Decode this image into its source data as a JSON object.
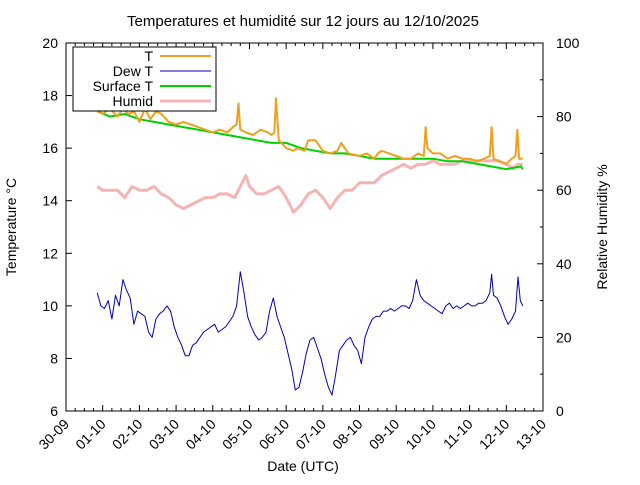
{
  "chart_data": {
    "type": "line",
    "title": "Temperatures et humidité sur 12 jours au 12/10/2025",
    "xlabel": "Date (UTC)",
    "ylabel": "Temperature °C",
    "y2label": "Relative Humidity %",
    "xlim": [
      0,
      13
    ],
    "ylim": [
      6,
      20
    ],
    "y2lim": [
      0,
      100
    ],
    "grid": false,
    "legend_position": "top-left",
    "x_ticks": [
      "30-09",
      "01-10",
      "02-10",
      "03-10",
      "04-10",
      "05-10",
      "06-10",
      "07-10",
      "08-10",
      "09-10",
      "10-10",
      "11-10",
      "12-10",
      "13-10"
    ],
    "y_ticks": [
      6,
      8,
      10,
      12,
      14,
      16,
      18,
      20
    ],
    "y2_ticks": [
      0,
      20,
      40,
      60,
      80,
      100
    ],
    "series": [
      {
        "name": "T",
        "axis": "left",
        "color": "#f0a020",
        "width": 2,
        "x": [
          0.85,
          1.0,
          1.2,
          1.4,
          1.55,
          1.7,
          1.85,
          2.0,
          2.15,
          2.3,
          2.45,
          2.6,
          2.8,
          3.0,
          3.2,
          3.4,
          3.6,
          3.8,
          4.0,
          4.2,
          4.4,
          4.55,
          4.65,
          4.7,
          4.75,
          4.9,
          5.1,
          5.3,
          5.5,
          5.6,
          5.68,
          5.72,
          5.8,
          6.0,
          6.2,
          6.3,
          6.5,
          6.6,
          6.8,
          7.0,
          7.2,
          7.4,
          7.5,
          7.7,
          8.0,
          8.2,
          8.4,
          8.5,
          8.6,
          8.8,
          9.0,
          9.2,
          9.4,
          9.6,
          9.75,
          9.8,
          9.85,
          10.0,
          10.2,
          10.4,
          10.6,
          10.8,
          11.0,
          11.2,
          11.4,
          11.55,
          11.6,
          11.65,
          11.8,
          12.0,
          12.15,
          12.25,
          12.3,
          12.35,
          12.45
        ],
        "y": [
          17.4,
          17.3,
          17.5,
          17.2,
          17.5,
          17.3,
          17.4,
          17.0,
          17.5,
          17.1,
          17.4,
          17.3,
          17.0,
          16.9,
          17.0,
          16.9,
          16.8,
          16.7,
          16.6,
          16.7,
          16.6,
          16.8,
          16.9,
          17.7,
          16.7,
          16.6,
          16.5,
          16.7,
          16.6,
          16.5,
          16.6,
          17.9,
          16.3,
          16.0,
          15.9,
          16.0,
          15.9,
          16.3,
          16.3,
          15.9,
          15.8,
          15.9,
          16.2,
          15.8,
          15.7,
          15.8,
          15.6,
          15.8,
          15.9,
          15.8,
          15.7,
          15.6,
          15.6,
          15.8,
          15.7,
          16.8,
          16.0,
          15.8,
          15.8,
          15.6,
          15.7,
          15.6,
          15.6,
          15.5,
          15.6,
          15.7,
          16.8,
          15.6,
          15.5,
          15.4,
          15.6,
          15.7,
          16.7,
          15.6,
          15.6
        ]
      },
      {
        "name": "Dew T",
        "axis": "left",
        "color": "#0000b0",
        "width": 1,
        "x": [
          0.85,
          0.95,
          1.05,
          1.15,
          1.25,
          1.35,
          1.45,
          1.55,
          1.65,
          1.75,
          1.85,
          1.95,
          2.05,
          2.15,
          2.25,
          2.35,
          2.45,
          2.55,
          2.65,
          2.75,
          2.85,
          2.95,
          3.05,
          3.15,
          3.25,
          3.35,
          3.45,
          3.55,
          3.65,
          3.75,
          3.85,
          3.95,
          4.05,
          4.15,
          4.25,
          4.35,
          4.45,
          4.55,
          4.65,
          4.75,
          4.85,
          4.95,
          5.05,
          5.15,
          5.25,
          5.35,
          5.45,
          5.55,
          5.65,
          5.75,
          5.85,
          5.95,
          6.05,
          6.15,
          6.25,
          6.35,
          6.45,
          6.55,
          6.65,
          6.75,
          6.85,
          6.95,
          7.05,
          7.15,
          7.25,
          7.35,
          7.45,
          7.55,
          7.65,
          7.75,
          7.85,
          7.95,
          8.05,
          8.15,
          8.25,
          8.35,
          8.45,
          8.55,
          8.65,
          8.75,
          8.85,
          8.95,
          9.05,
          9.15,
          9.25,
          9.35,
          9.45,
          9.55,
          9.65,
          9.75,
          9.85,
          9.95,
          10.05,
          10.15,
          10.25,
          10.35,
          10.45,
          10.55,
          10.65,
          10.75,
          10.85,
          10.95,
          11.05,
          11.15,
          11.25,
          11.35,
          11.45,
          11.55,
          11.6,
          11.65,
          11.75,
          11.85,
          11.95,
          12.05,
          12.15,
          12.25,
          12.32,
          12.38,
          12.45
        ],
        "y": [
          10.5,
          10.0,
          9.9,
          10.2,
          9.5,
          10.4,
          10.0,
          11.0,
          10.6,
          10.3,
          9.3,
          9.8,
          9.7,
          9.6,
          9.0,
          8.8,
          9.5,
          9.7,
          9.8,
          10.0,
          9.8,
          9.2,
          8.8,
          8.5,
          8.1,
          8.1,
          8.5,
          8.6,
          8.8,
          9.0,
          9.1,
          9.2,
          9.3,
          9.0,
          9.1,
          9.2,
          9.4,
          9.6,
          10.0,
          11.3,
          10.5,
          9.6,
          9.2,
          8.9,
          8.7,
          8.8,
          9.0,
          9.8,
          10.3,
          9.6,
          9.2,
          8.8,
          8.2,
          7.6,
          6.8,
          6.9,
          7.5,
          8.2,
          8.7,
          8.8,
          8.4,
          8.0,
          7.4,
          6.9,
          6.6,
          7.4,
          8.3,
          8.5,
          8.7,
          8.8,
          8.5,
          8.3,
          7.8,
          8.8,
          9.2,
          9.5,
          9.6,
          9.6,
          9.8,
          9.8,
          9.9,
          9.8,
          9.9,
          10.0,
          10.0,
          9.9,
          10.2,
          11.0,
          10.4,
          10.2,
          10.1,
          10.0,
          9.9,
          9.8,
          9.7,
          10.0,
          10.1,
          9.9,
          10.0,
          9.9,
          10.0,
          10.1,
          10.0,
          10.0,
          10.1,
          10.1,
          10.2,
          10.5,
          11.2,
          10.4,
          10.3,
          10.0,
          9.6,
          9.3,
          9.5,
          9.8,
          11.1,
          10.2,
          10.0
        ]
      },
      {
        "name": "Surface T",
        "axis": "left",
        "color": "#00d000",
        "width": 2,
        "x": [
          0.85,
          1.2,
          1.6,
          2.0,
          2.4,
          2.8,
          3.2,
          3.6,
          4.0,
          4.4,
          4.8,
          5.2,
          5.6,
          6.0,
          6.4,
          6.8,
          7.2,
          7.6,
          8.0,
          8.4,
          8.8,
          9.2,
          9.6,
          10.0,
          10.4,
          10.8,
          11.2,
          11.6,
          12.0,
          12.4,
          12.45
        ],
        "y": [
          17.4,
          17.2,
          17.3,
          17.1,
          17.0,
          16.9,
          16.8,
          16.7,
          16.6,
          16.5,
          16.4,
          16.3,
          16.2,
          16.2,
          16.0,
          15.9,
          15.8,
          15.8,
          15.7,
          15.6,
          15.6,
          15.6,
          15.6,
          15.6,
          15.5,
          15.5,
          15.4,
          15.3,
          15.2,
          15.3,
          15.2
        ]
      },
      {
        "name": "Humid",
        "axis": "right",
        "color": "#f4b4b4",
        "width": 3,
        "x": [
          0.85,
          1.0,
          1.2,
          1.4,
          1.6,
          1.8,
          2.0,
          2.2,
          2.4,
          2.6,
          2.8,
          3.0,
          3.2,
          3.4,
          3.6,
          3.8,
          4.0,
          4.2,
          4.4,
          4.6,
          4.75,
          4.9,
          5.0,
          5.2,
          5.4,
          5.6,
          5.8,
          6.0,
          6.2,
          6.4,
          6.6,
          6.8,
          7.0,
          7.2,
          7.4,
          7.6,
          7.8,
          8.0,
          8.2,
          8.4,
          8.6,
          8.8,
          9.0,
          9.2,
          9.4,
          9.6,
          9.8,
          10.0,
          10.2,
          10.4,
          10.6,
          10.8,
          11.0,
          11.2,
          11.4,
          11.6,
          11.8,
          12.0,
          12.2,
          12.3,
          12.45
        ],
        "y": [
          61,
          60,
          60,
          60,
          58,
          61,
          60,
          60,
          61,
          59,
          58,
          56,
          55,
          56,
          57,
          58,
          58,
          59,
          59,
          58,
          61,
          64,
          61,
          59,
          59,
          60,
          61,
          58,
          54,
          56,
          59,
          60,
          58,
          55,
          58,
          60,
          60,
          62,
          62,
          62,
          64,
          65,
          66,
          67,
          66,
          67,
          67,
          68,
          67,
          67,
          67,
          68,
          68,
          68,
          68,
          68,
          68,
          67,
          66,
          67,
          67
        ]
      }
    ]
  }
}
